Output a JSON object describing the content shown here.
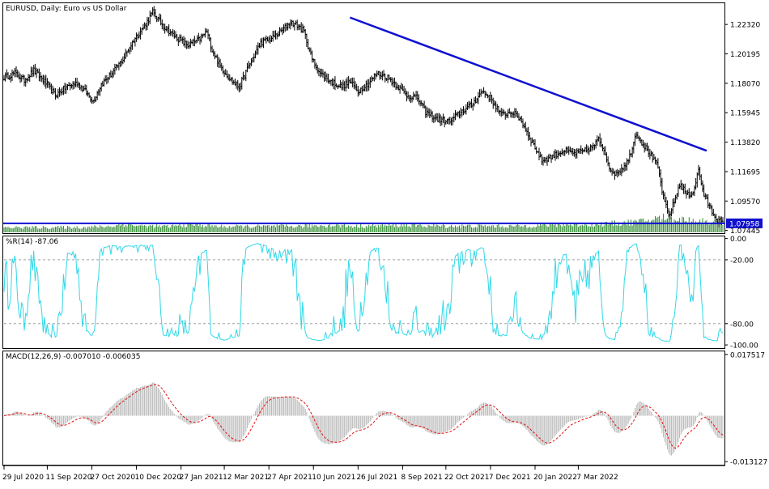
{
  "colors": {
    "background": "#ffffff",
    "candles": "#000000",
    "trendline": "#1010d0",
    "volume": "#2e8b2e",
    "wpr": "#30d8e8",
    "macd_hist": "#b8b8b8",
    "macd_signal": "#e01010",
    "price_label_bg": "#1010d0",
    "price_label_fg": "#ffffff",
    "level_dashes": "#a0a0a0"
  },
  "chart_data": [
    {
      "type": "candlestick",
      "title": "EURUSD, Daily:  Euro vs US Dollar",
      "y_ticks": [
        "1.22320",
        "1.20195",
        "1.18070",
        "1.15945",
        "1.13820",
        "1.11695",
        "1.09570",
        "1.07445"
      ],
      "ylim": [
        1.0725,
        1.2385
      ],
      "current_price": "1.07958",
      "close_path": [
        [
          0,
          1.185
        ],
        [
          8,
          1.188
        ],
        [
          15,
          1.183
        ],
        [
          22,
          1.19
        ],
        [
          30,
          1.182
        ],
        [
          38,
          1.172
        ],
        [
          46,
          1.178
        ],
        [
          54,
          1.181
        ],
        [
          60,
          1.175
        ],
        [
          66,
          1.168
        ],
        [
          72,
          1.18
        ],
        [
          80,
          1.188
        ],
        [
          88,
          1.198
        ],
        [
          96,
          1.212
        ],
        [
          104,
          1.222
        ],
        [
          110,
          1.232
        ],
        [
          118,
          1.222
        ],
        [
          126,
          1.215
        ],
        [
          136,
          1.208
        ],
        [
          144,
          1.212
        ],
        [
          150,
          1.218
        ],
        [
          154,
          1.205
        ],
        [
          160,
          1.193
        ],
        [
          168,
          1.183
        ],
        [
          174,
          1.178
        ],
        [
          182,
          1.195
        ],
        [
          190,
          1.21
        ],
        [
          198,
          1.213
        ],
        [
          206,
          1.219
        ],
        [
          212,
          1.225
        ],
        [
          218,
          1.222
        ],
        [
          222,
          1.218
        ],
        [
          228,
          1.198
        ],
        [
          234,
          1.188
        ],
        [
          242,
          1.182
        ],
        [
          250,
          1.178
        ],
        [
          256,
          1.182
        ],
        [
          262,
          1.175
        ],
        [
          270,
          1.181
        ],
        [
          276,
          1.188
        ],
        [
          284,
          1.185
        ],
        [
          292,
          1.178
        ],
        [
          298,
          1.172
        ],
        [
          306,
          1.17
        ],
        [
          312,
          1.16
        ],
        [
          320,
          1.155
        ],
        [
          330,
          1.153
        ],
        [
          338,
          1.16
        ],
        [
          346,
          1.165
        ],
        [
          354,
          1.175
        ],
        [
          360,
          1.17
        ],
        [
          368,
          1.158
        ],
        [
          376,
          1.16
        ],
        [
          382,
          1.155
        ],
        [
          390,
          1.14
        ],
        [
          398,
          1.125
        ],
        [
          406,
          1.128
        ],
        [
          414,
          1.132
        ],
        [
          422,
          1.13
        ],
        [
          430,
          1.132
        ],
        [
          436,
          1.135
        ],
        [
          440,
          1.14
        ],
        [
          444,
          1.133
        ],
        [
          450,
          1.115
        ],
        [
          456,
          1.118
        ],
        [
          462,
          1.125
        ],
        [
          468,
          1.145
        ],
        [
          472,
          1.138
        ],
        [
          478,
          1.13
        ],
        [
          484,
          1.12
        ],
        [
          488,
          1.098
        ],
        [
          492,
          1.085
        ],
        [
          496,
          1.095
        ],
        [
          500,
          1.108
        ],
        [
          506,
          1.1
        ],
        [
          510,
          1.102
        ],
        [
          514,
          1.118
        ],
        [
          518,
          1.1
        ],
        [
          524,
          1.088
        ],
        [
          528,
          1.082
        ],
        [
          532,
          1.08
        ]
      ],
      "trendline": [
        [
          256,
          1.2282
        ],
        [
          520,
          1.132
        ]
      ],
      "horizontal_level": 1.07958,
      "volume_profile": [
        [
          0,
          0.3
        ],
        [
          60,
          0.32
        ],
        [
          80,
          0.38
        ],
        [
          90,
          0.52
        ],
        [
          100,
          0.4
        ],
        [
          120,
          0.36
        ],
        [
          140,
          0.5
        ],
        [
          160,
          0.36
        ],
        [
          220,
          0.38
        ],
        [
          240,
          0.45
        ],
        [
          260,
          0.38
        ],
        [
          300,
          0.45
        ],
        [
          320,
          0.4
        ],
        [
          380,
          0.38
        ],
        [
          400,
          0.45
        ],
        [
          440,
          0.5
        ],
        [
          470,
          0.65
        ],
        [
          490,
          0.95
        ],
        [
          500,
          0.8
        ],
        [
          532,
          0.6
        ]
      ]
    },
    {
      "type": "line",
      "title": "%R(14) -87.06",
      "y_ticks": [
        "0.00",
        "-20.00",
        "-80.00",
        "-100.00"
      ],
      "levels": [
        -20,
        -80
      ],
      "ylim": [
        -103,
        2
      ]
    },
    {
      "type": "bar",
      "title": "MACD(12,26,9) -0.007010 -0.006035",
      "y_ticks": [
        "0.017517",
        "-0.013127"
      ],
      "ylim": [
        -0.014,
        0.0184
      ]
    }
  ],
  "x_axis": {
    "count": 533,
    "labels": [
      {
        "i": 0,
        "text": "29 Jul 2020"
      },
      {
        "i": 32,
        "text": "11 Sep 2020"
      },
      {
        "i": 65,
        "text": "27 Oct 2020"
      },
      {
        "i": 98,
        "text": "10 Dec 2020"
      },
      {
        "i": 131,
        "text": "27 Jan 2021"
      },
      {
        "i": 163,
        "text": "12 Mar 2021"
      },
      {
        "i": 196,
        "text": "27 Apr 2021"
      },
      {
        "i": 229,
        "text": "10 Jun 2021"
      },
      {
        "i": 262,
        "text": "26 Jul 2021"
      },
      {
        "i": 295,
        "text": "8 Sep 2021"
      },
      {
        "i": 327,
        "text": "22 Oct 2021"
      },
      {
        "i": 360,
        "text": "7 Dec 2021"
      },
      {
        "i": 393,
        "text": "20 Jan 2022"
      },
      {
        "i": 425,
        "text": "7 Mar 2022"
      }
    ]
  }
}
